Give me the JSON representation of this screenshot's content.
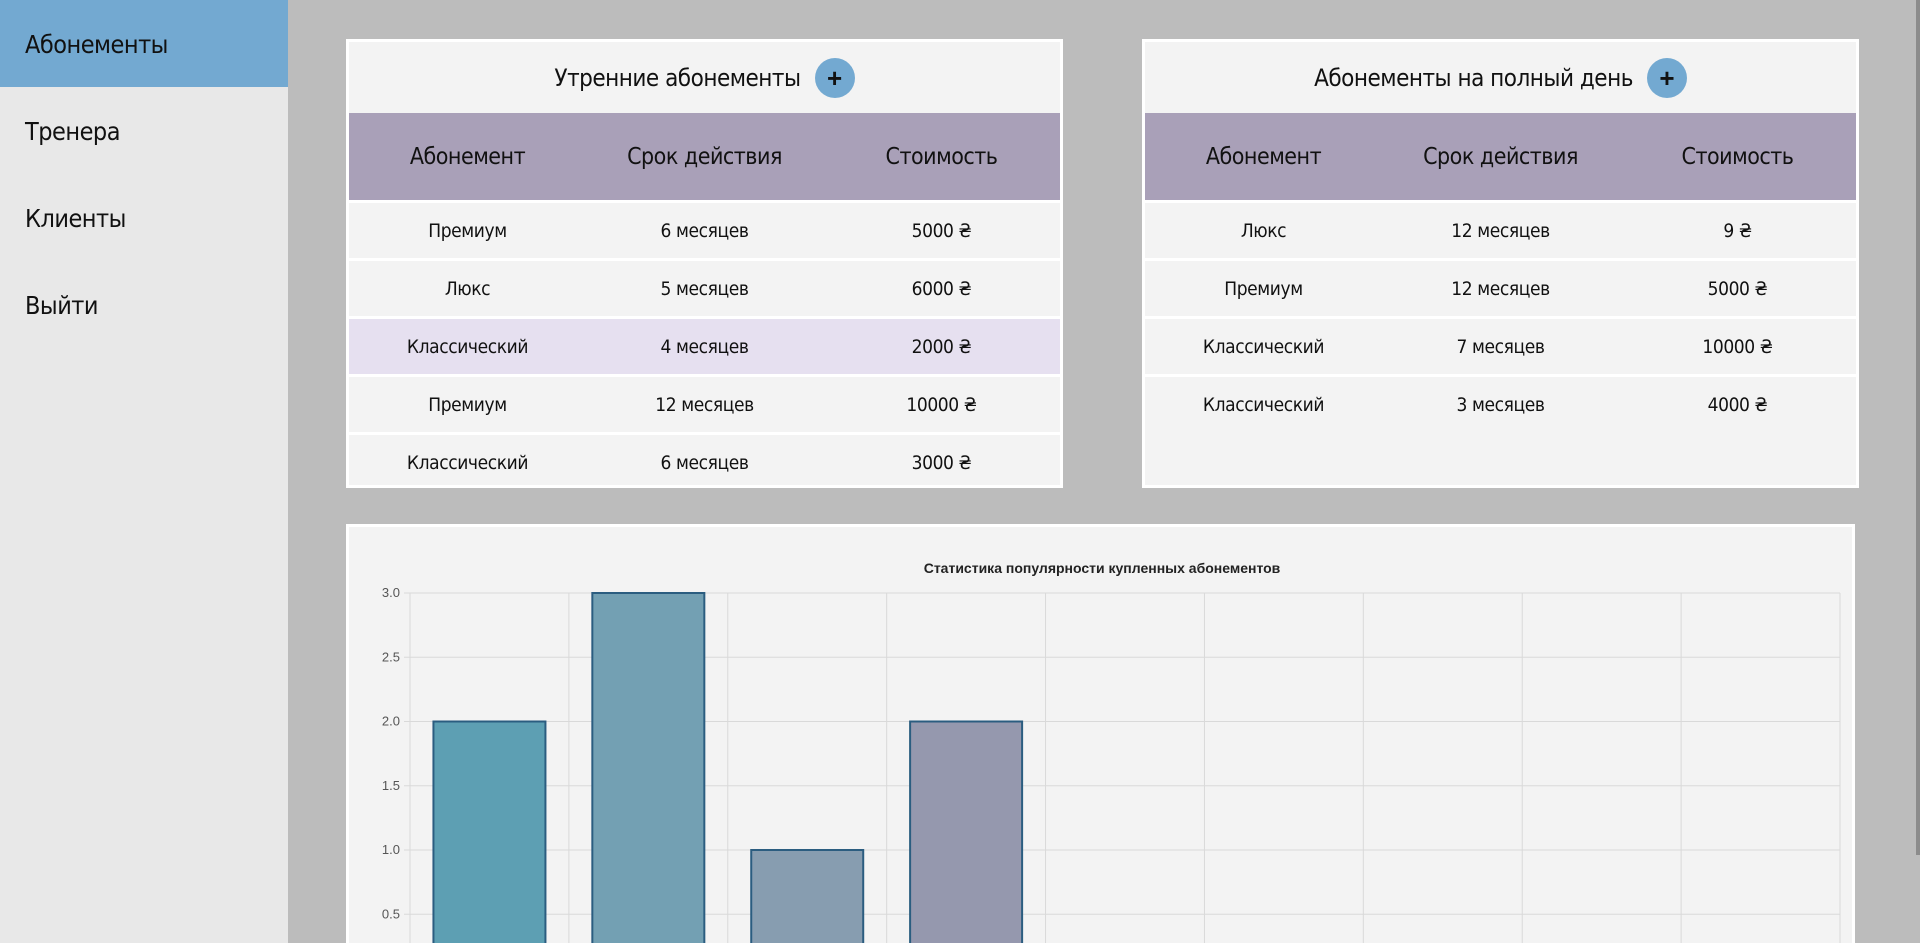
{
  "sidebar": {
    "items": [
      {
        "label": "Абонементы",
        "active": true
      },
      {
        "label": "Тренера",
        "active": false
      },
      {
        "label": "Клиенты",
        "active": false
      },
      {
        "label": "Выйти",
        "active": false
      }
    ]
  },
  "morning": {
    "title": "Утренние абонементы",
    "add_label": "+",
    "headers": [
      "Абонемент",
      "Срок действия",
      "Стоимость"
    ],
    "rows": [
      [
        "Премиум",
        "6 месяцев",
        "5000 ₴"
      ],
      [
        "Люкс",
        "5 месяцев",
        "6000 ₴"
      ],
      [
        "Классический",
        "4 месяцев",
        "2000 ₴"
      ],
      [
        "Премиум",
        "12 месяцев",
        "10000 ₴"
      ],
      [
        "Классический",
        "6 месяцев",
        "3000 ₴"
      ]
    ]
  },
  "fullday": {
    "title": "Абонементы на полный день",
    "add_label": "+",
    "headers": [
      "Абонемент",
      "Срок действия",
      "Стоимость"
    ],
    "rows": [
      [
        "Люкс",
        "12 месяцев",
        "9 ₴"
      ],
      [
        "Премиум",
        "12 месяцев",
        "5000 ₴"
      ],
      [
        "Классический",
        "7 месяцев",
        "10000 ₴"
      ],
      [
        "Классический",
        "3 месяцев",
        "4000 ₴"
      ]
    ]
  },
  "colors": {
    "sidebar_active": "#73a9d1",
    "table_header": "#a9a0b8",
    "row_highlight": "#e6e0f0",
    "add_button": "#73a9d1"
  },
  "chart_data": {
    "type": "bar",
    "title": "Статистика популярности купленных абонементов",
    "xlabel": "",
    "ylabel": "",
    "ylim": [
      0,
      3.0
    ],
    "ytick_labels": [
      "3.0",
      "2.5",
      "2.0",
      "1.5",
      "1.0",
      "0.5"
    ],
    "values": [
      2,
      3,
      1,
      2
    ],
    "category_slots": 9,
    "bar_colors": [
      "#5d9fb3",
      "#73a0b3",
      "#879db0",
      "#9598ae"
    ],
    "bar_border": "#2b5d80",
    "grid": true
  }
}
